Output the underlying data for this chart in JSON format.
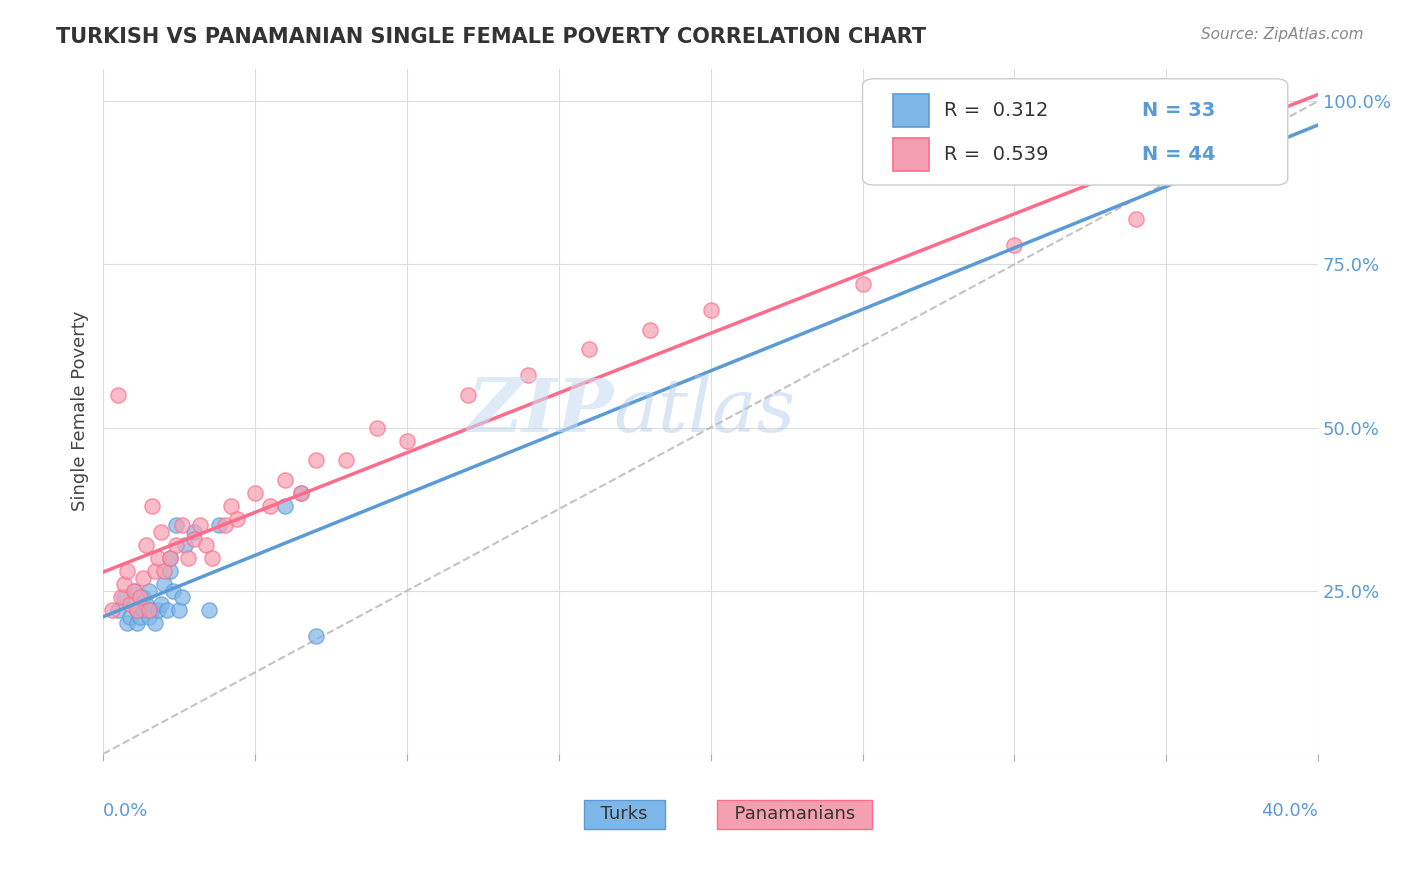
{
  "title": "TURKISH VS PANAMANIAN SINGLE FEMALE POVERTY CORRELATION CHART",
  "source": "Source: ZipAtlas.com",
  "ylabel": "Single Female Poverty",
  "y_ticks": [
    0.0,
    0.25,
    0.5,
    0.75,
    1.0
  ],
  "y_tick_labels": [
    "",
    "25.0%",
    "50.0%",
    "75.0%",
    "100.0%"
  ],
  "xlim": [
    0.0,
    0.4
  ],
  "ylim": [
    0.0,
    1.05
  ],
  "legend_r_turks": "R =  0.312",
  "legend_n_turks": "N = 33",
  "legend_r_pan": "R =  0.539",
  "legend_n_pan": "N = 44",
  "color_turks": "#7EB6E8",
  "color_pan": "#F4A0B0",
  "color_turks_line": "#5B9BD5",
  "color_pan_line": "#FF6B8A",
  "color_diag": "#AAAAAA",
  "watermark_zip": "ZIP",
  "watermark_atlas": "atlas",
  "turks_x": [
    0.005,
    0.007,
    0.008,
    0.009,
    0.01,
    0.01,
    0.011,
    0.011,
    0.012,
    0.013,
    0.013,
    0.014,
    0.015,
    0.015,
    0.016,
    0.017,
    0.018,
    0.019,
    0.02,
    0.021,
    0.022,
    0.022,
    0.023,
    0.024,
    0.025,
    0.026,
    0.027,
    0.03,
    0.035,
    0.038,
    0.06,
    0.065,
    0.07
  ],
  "turks_y": [
    0.22,
    0.24,
    0.2,
    0.21,
    0.23,
    0.25,
    0.2,
    0.22,
    0.21,
    0.22,
    0.24,
    0.23,
    0.25,
    0.21,
    0.22,
    0.2,
    0.22,
    0.23,
    0.26,
    0.22,
    0.28,
    0.3,
    0.25,
    0.35,
    0.22,
    0.24,
    0.32,
    0.34,
    0.22,
    0.35,
    0.38,
    0.4,
    0.18
  ],
  "pan_x": [
    0.003,
    0.005,
    0.006,
    0.007,
    0.008,
    0.009,
    0.01,
    0.011,
    0.012,
    0.013,
    0.014,
    0.015,
    0.016,
    0.017,
    0.018,
    0.019,
    0.02,
    0.022,
    0.024,
    0.026,
    0.028,
    0.03,
    0.032,
    0.034,
    0.036,
    0.04,
    0.042,
    0.044,
    0.05,
    0.055,
    0.06,
    0.065,
    0.07,
    0.08,
    0.09,
    0.1,
    0.12,
    0.14,
    0.16,
    0.18,
    0.2,
    0.25,
    0.3,
    0.34
  ],
  "pan_y": [
    0.22,
    0.55,
    0.24,
    0.26,
    0.28,
    0.23,
    0.25,
    0.22,
    0.24,
    0.27,
    0.32,
    0.22,
    0.38,
    0.28,
    0.3,
    0.34,
    0.28,
    0.3,
    0.32,
    0.35,
    0.3,
    0.33,
    0.35,
    0.32,
    0.3,
    0.35,
    0.38,
    0.36,
    0.4,
    0.38,
    0.42,
    0.4,
    0.45,
    0.45,
    0.5,
    0.48,
    0.55,
    0.58,
    0.62,
    0.65,
    0.68,
    0.72,
    0.78,
    0.82
  ],
  "background_color": "#FFFFFF",
  "grid_color": "#DDDDDD"
}
